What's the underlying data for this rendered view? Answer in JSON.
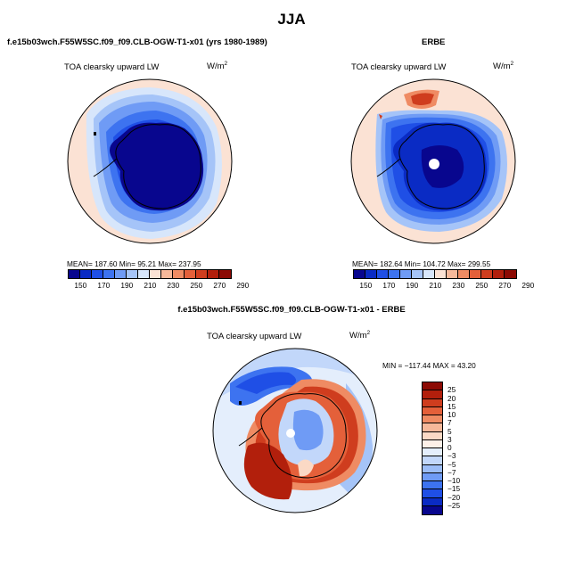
{
  "figure": {
    "title": "JJA",
    "panel_left_title": "f.e15b03wch.F55W5SC.f09_f09.CLB-OGW-T1-x01 (yrs 1980-1989)",
    "panel_right_title": "ERBE",
    "panel_bottom_title": "f.e15b03wch.F55W5SC.f09_f09.CLB-OGW-T1-x01 - ERBE",
    "variable": "TOA clearsky upward LW",
    "units": "W/m",
    "units_exp": "2"
  },
  "panels": {
    "left": {
      "stats": "MEAN= 187.60   Min= 95.21   Max= 237.95",
      "mean": 187.6,
      "min": 95.21,
      "max": 237.95
    },
    "right": {
      "stats": "MEAN= 182.64   Min= 104.72   Max= 299.55",
      "mean": 182.64,
      "min": 104.72,
      "max": 299.55
    },
    "bottom": {
      "stats": "MIN = −117.44 MAX =  43.20",
      "min": -117.44,
      "max": 43.2
    }
  },
  "colorbar_abs": {
    "labels": [
      "150",
      "170",
      "190",
      "210",
      "230",
      "250",
      "270",
      "290"
    ],
    "colors": [
      "#08068e",
      "#0a2bc4",
      "#1f4fe6",
      "#3d73f0",
      "#6f9bf5",
      "#a5c4f8",
      "#d7e6fb",
      "#fbe2d4",
      "#f6b89a",
      "#ef8b63",
      "#e4603a",
      "#cf3d1e",
      "#b21f0c",
      "#8c0a04"
    ]
  },
  "colorbar_diff": {
    "labels": [
      "25",
      "20",
      "15",
      "10",
      "7",
      "5",
      "3",
      "0",
      "−3",
      "−5",
      "−7",
      "−10",
      "−15",
      "−20",
      "−25"
    ],
    "colors": [
      "#8c0a04",
      "#b21f0c",
      "#cf3d1e",
      "#e4603a",
      "#ef8b63",
      "#f6b89a",
      "#fbd9c5",
      "#fdf0e8",
      "#e4eefc",
      "#c2d7fa",
      "#9cbdf7",
      "#6f9bf5",
      "#3d73f0",
      "#1f4fe6",
      "#0a2bc4",
      "#08068e"
    ]
  },
  "colors": {
    "deep": "#0a0a82",
    "ocean_mid": "#4b7ff0",
    "ocean_light": "#a8c6f8",
    "warm_light": "#fbe2d4",
    "warm_mid": "#ef8b63",
    "warm_deep": "#c0300f"
  }
}
